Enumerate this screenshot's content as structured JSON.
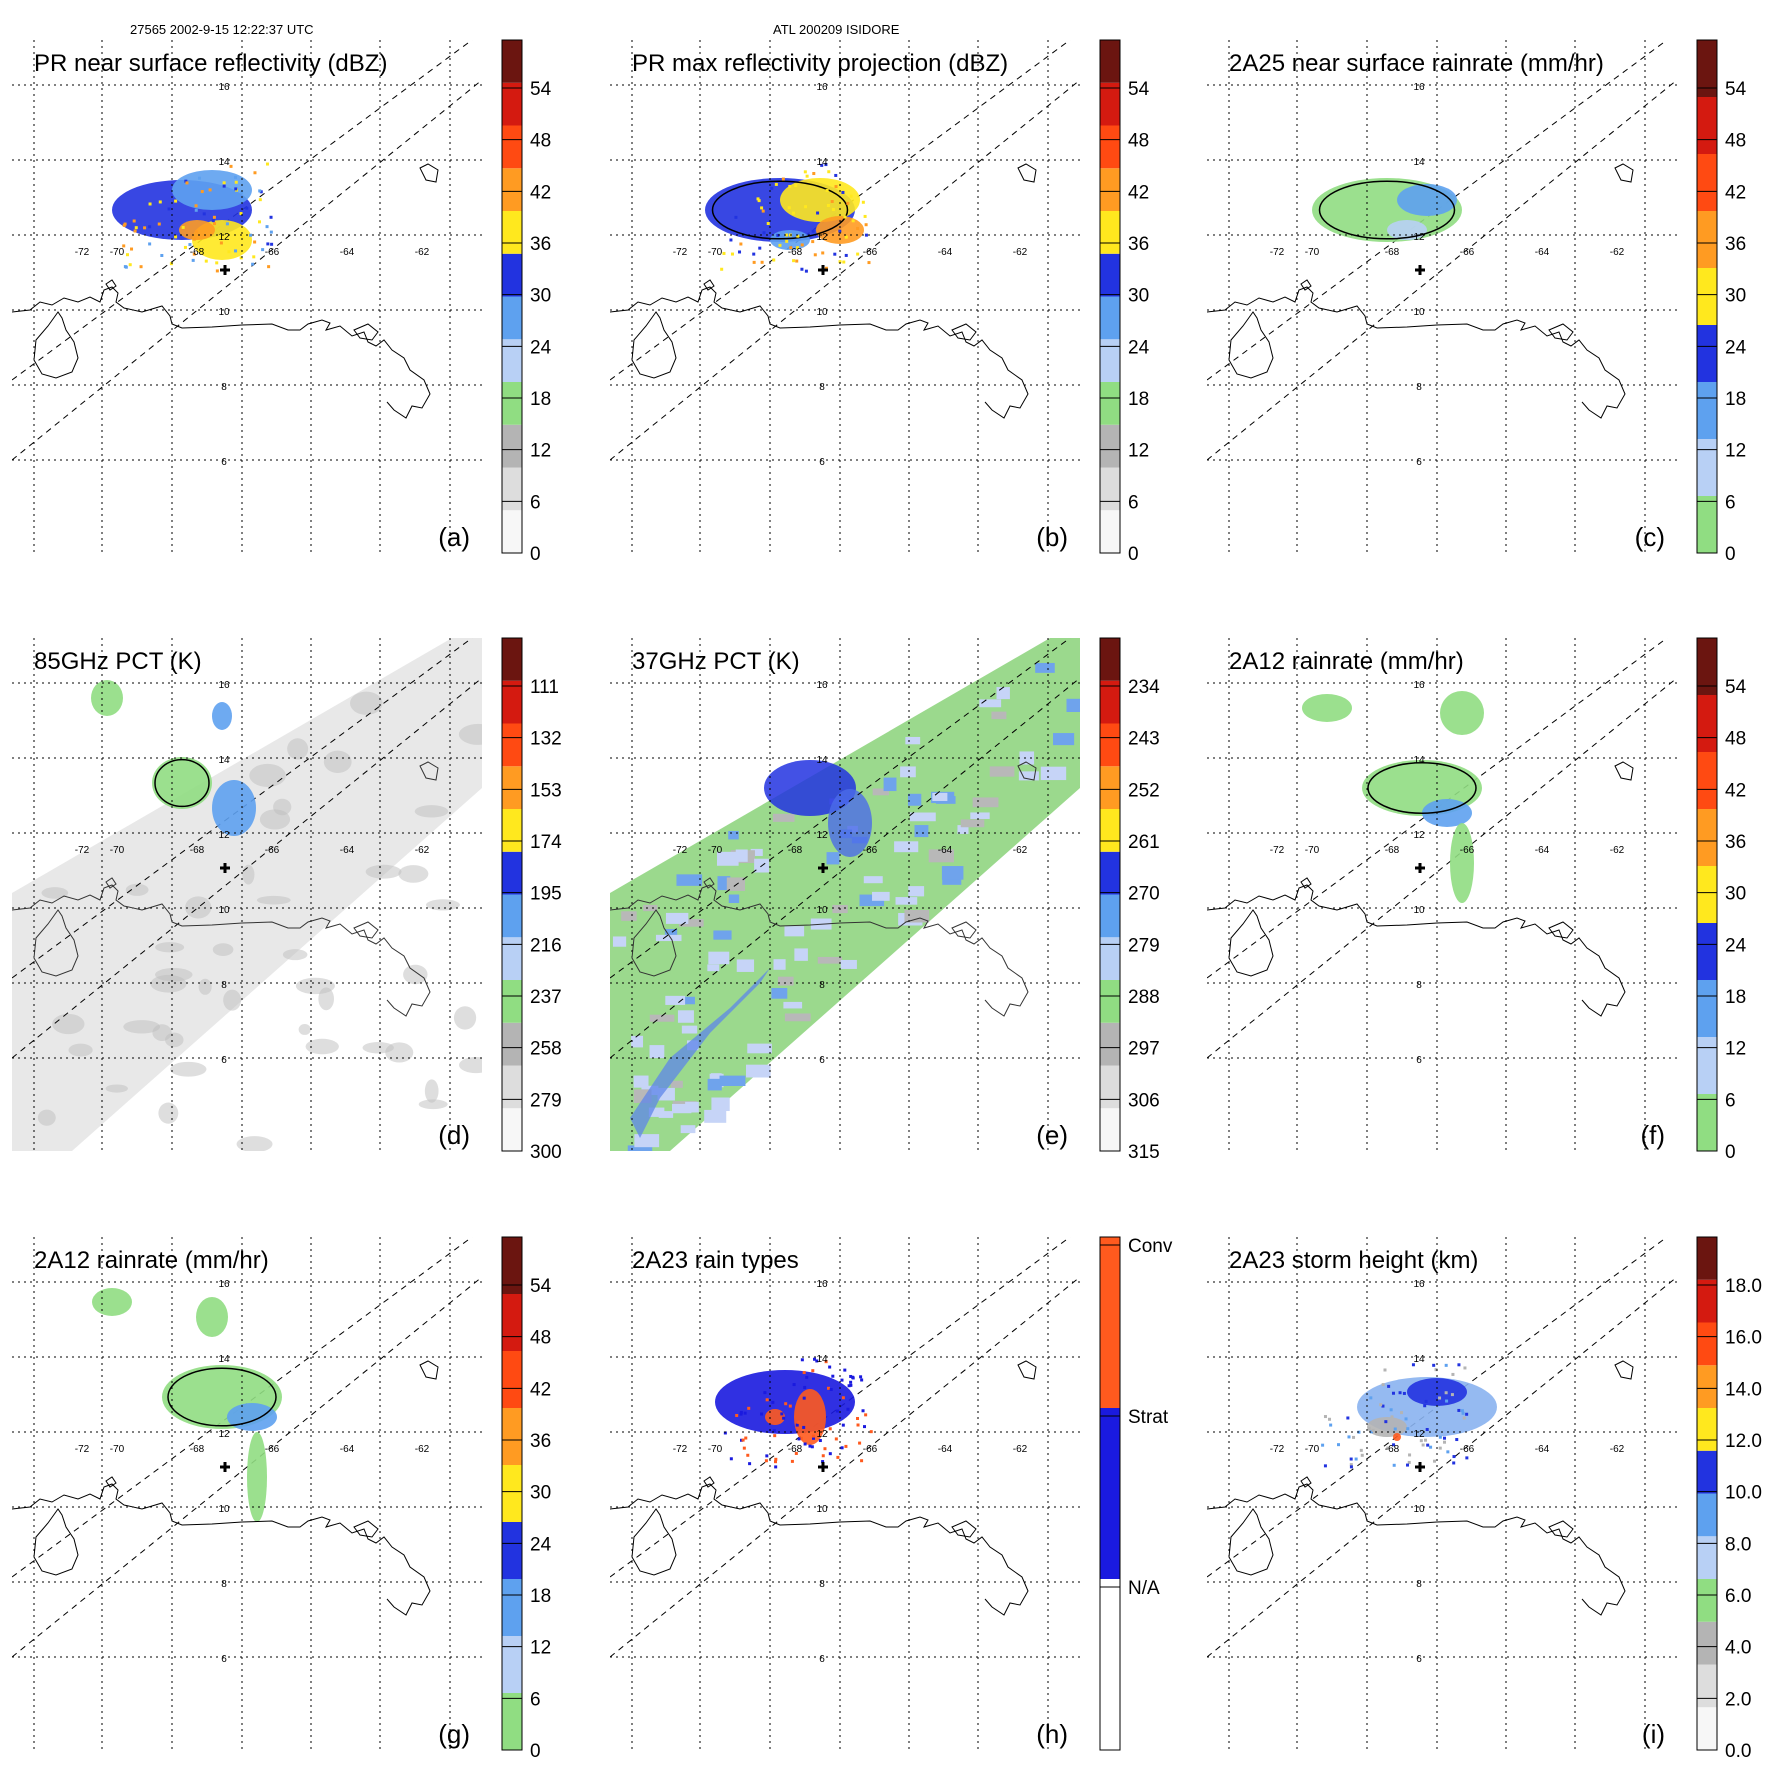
{
  "header": {
    "left": "27565 2002-9-15 12:22:37 UTC",
    "center": "ATL 200209 ISIDORE"
  },
  "map": {
    "lon_labels": [
      "-72",
      "-70",
      "-68",
      "-66",
      "-64",
      "-62"
    ],
    "lat_labels": [
      "16",
      "14",
      "12",
      "10",
      "8",
      "6"
    ]
  },
  "panels": [
    {
      "id": "a",
      "title": "PR near surface reflectivity (dBZ)",
      "label": "(a)",
      "background": "white",
      "colorbar": {
        "ticks": [
          "54",
          "48",
          "42",
          "36",
          "30",
          "24",
          "18",
          "12",
          "6",
          "0"
        ],
        "colors": [
          "#f7f7f7",
          "#dddddd",
          "#b4b4b4",
          "#90dd82",
          "#b8d0f5",
          "#5ea1ef",
          "#2233e0",
          "#ffe81e",
          "#ff9b22",
          "#ff4a12",
          "#d41a10",
          "#6b1510"
        ]
      }
    },
    {
      "id": "b",
      "title": "PR max reflectivity projection (dBZ)",
      "label": "(b)",
      "background": "white",
      "colorbar": {
        "ticks": [
          "54",
          "48",
          "42",
          "36",
          "30",
          "24",
          "18",
          "12",
          "6",
          "0"
        ],
        "colors": [
          "#f7f7f7",
          "#dddddd",
          "#b4b4b4",
          "#90dd82",
          "#b8d0f5",
          "#5ea1ef",
          "#2233e0",
          "#ffe81e",
          "#ff9b22",
          "#ff4a12",
          "#d41a10",
          "#6b1510"
        ]
      }
    },
    {
      "id": "c",
      "title": "2A25 near surface rainrate (mm/hr)",
      "label": "(c)",
      "background": "white",
      "colorbar": {
        "ticks": [
          "54",
          "48",
          "42",
          "36",
          "30",
          "24",
          "18",
          "12",
          "6",
          "0"
        ],
        "colors": [
          "#90dd82",
          "#b8d0f5",
          "#5ea1ef",
          "#2233e0",
          "#ffe81e",
          "#ff9b22",
          "#ff4a12",
          "#d41a10",
          "#6b1510"
        ]
      }
    },
    {
      "id": "d",
      "title": "85GHz PCT (K)",
      "label": "(d)",
      "background": "gray",
      "colorbar": {
        "ticks": [
          "111",
          "132",
          "153",
          "174",
          "195",
          "216",
          "237",
          "258",
          "279",
          "300"
        ],
        "colors": [
          "#f7f7f7",
          "#dddddd",
          "#b4b4b4",
          "#90dd82",
          "#b8d0f5",
          "#5ea1ef",
          "#2233e0",
          "#ffe81e",
          "#ff9b22",
          "#ff4a12",
          "#d41a10",
          "#6b1510"
        ]
      }
    },
    {
      "id": "e",
      "title": "37GHz PCT (K)",
      "label": "(e)",
      "background": "green",
      "colorbar": {
        "ticks": [
          "234",
          "243",
          "252",
          "261",
          "270",
          "279",
          "288",
          "297",
          "306",
          "315"
        ],
        "colors": [
          "#f7f7f7",
          "#dddddd",
          "#b4b4b4",
          "#90dd82",
          "#b8d0f5",
          "#5ea1ef",
          "#2233e0",
          "#ffe81e",
          "#ff9b22",
          "#ff4a12",
          "#d41a10",
          "#6b1510"
        ]
      }
    },
    {
      "id": "f",
      "title": "2A12 rainrate (mm/hr)",
      "label": "(f)",
      "background": "white",
      "colorbar": {
        "ticks": [
          "54",
          "48",
          "42",
          "36",
          "30",
          "24",
          "18",
          "12",
          "6",
          "0"
        ],
        "colors": [
          "#90dd82",
          "#b8d0f5",
          "#5ea1ef",
          "#2233e0",
          "#ffe81e",
          "#ff9b22",
          "#ff4a12",
          "#d41a10",
          "#6b1510"
        ]
      }
    },
    {
      "id": "g",
      "title": "2A12 rainrate (mm/hr)",
      "label": "(g)",
      "background": "white",
      "colorbar": {
        "ticks": [
          "54",
          "48",
          "42",
          "36",
          "30",
          "24",
          "18",
          "12",
          "6",
          "0"
        ],
        "colors": [
          "#90dd82",
          "#b8d0f5",
          "#5ea1ef",
          "#2233e0",
          "#ffe81e",
          "#ff9b22",
          "#ff4a12",
          "#d41a10",
          "#6b1510"
        ]
      }
    },
    {
      "id": "h",
      "title": "2A23 rain types",
      "label": "(h)",
      "background": "white",
      "colorbar": {
        "ticks": [
          "Conv",
          "Strat",
          "N/A"
        ],
        "colors": [
          "#ffffff",
          "#1a1adf",
          "#ff5a1e"
        ],
        "categorical": true
      }
    },
    {
      "id": "i",
      "title": "2A23 storm height (km)",
      "label": "(i)",
      "background": "white",
      "colorbar": {
        "ticks": [
          "18.0",
          "16.0",
          "14.0",
          "12.0",
          "10.0",
          "8.0",
          "6.0",
          "4.0",
          "2.0",
          "0.0"
        ],
        "colors": [
          "#f7f7f7",
          "#dddddd",
          "#b4b4b4",
          "#90dd82",
          "#b8d0f5",
          "#5ea1ef",
          "#2233e0",
          "#ffe81e",
          "#ff9b22",
          "#ff4a12",
          "#d41a10",
          "#6b1510"
        ]
      }
    }
  ],
  "chart_data": {
    "type": "heatmap",
    "title": "ATL 200209 ISIDORE",
    "subtitle": "27565 2002-9-15 12:22:37 UTC",
    "lon_range": [
      -72,
      -62
    ],
    "lat_range": [
      6,
      16
    ],
    "storm_center": {
      "lon": -66.4,
      "lat": 11.4
    },
    "panels": [
      {
        "id": "a",
        "field": "PR near surface reflectivity",
        "units": "dBZ",
        "range": [
          0,
          60
        ]
      },
      {
        "id": "b",
        "field": "PR max reflectivity projection",
        "units": "dBZ",
        "range": [
          0,
          60
        ]
      },
      {
        "id": "c",
        "field": "2A25 near surface rainrate",
        "units": "mm/hr",
        "range": [
          0,
          60
        ]
      },
      {
        "id": "d",
        "field": "85GHz PCT",
        "units": "K",
        "range": [
          90,
          300
        ]
      },
      {
        "id": "e",
        "field": "37GHz PCT",
        "units": "K",
        "range": [
          225,
          315
        ]
      },
      {
        "id": "f",
        "field": "2A12 rainrate",
        "units": "mm/hr",
        "range": [
          0,
          60
        ]
      },
      {
        "id": "g",
        "field": "2A12 rainrate",
        "units": "mm/hr",
        "range": [
          0,
          60
        ]
      },
      {
        "id": "h",
        "field": "2A23 rain types",
        "categories": [
          "N/A",
          "Strat",
          "Conv"
        ]
      },
      {
        "id": "i",
        "field": "2A23 storm height",
        "units": "km",
        "range": [
          0,
          20
        ]
      }
    ]
  }
}
